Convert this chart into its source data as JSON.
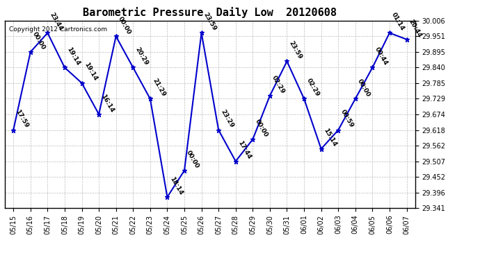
{
  "title": "Barometric Pressure  Daily Low  20120608",
  "copyright": "Copyright 2012 Cartronics.com",
  "x_labels": [
    "05/15",
    "05/16",
    "05/17",
    "05/18",
    "05/19",
    "05/20",
    "05/21",
    "05/22",
    "05/23",
    "05/24",
    "05/25",
    "05/26",
    "05/27",
    "05/28",
    "05/29",
    "05/30",
    "05/31",
    "06/01",
    "06/02",
    "06/03",
    "06/04",
    "06/05",
    "06/06",
    "06/07"
  ],
  "y_values": [
    29.618,
    29.895,
    29.963,
    29.84,
    29.785,
    29.674,
    29.951,
    29.84,
    29.729,
    29.38,
    29.474,
    29.963,
    29.618,
    29.507,
    29.585,
    29.74,
    29.862,
    29.729,
    29.551,
    29.618,
    29.729,
    29.84,
    29.963,
    29.94
  ],
  "time_labels": [
    "17:59",
    "00:00",
    "23:44",
    "19:14",
    "19:14",
    "16:14",
    "00:00",
    "20:29",
    "21:29",
    "18:14",
    "00:00",
    "23:59",
    "23:29",
    "17:44",
    "00:00",
    "02:29",
    "23:59",
    "02:29",
    "15:14",
    "00:59",
    "00:00",
    "00:44",
    "01:14",
    "20:44"
  ],
  "ylim_min": 29.341,
  "ylim_max": 30.006,
  "yticks": [
    29.341,
    29.396,
    29.452,
    29.507,
    29.562,
    29.618,
    29.674,
    29.729,
    29.785,
    29.84,
    29.895,
    29.951,
    30.006
  ],
  "line_color": "#0000cc",
  "marker_color": "#0000cc",
  "bg_color": "#ffffff",
  "grid_color": "#bbbbbb",
  "title_fontsize": 11,
  "label_fontsize": 6.5,
  "tick_fontsize": 7,
  "copyright_fontsize": 6.5
}
